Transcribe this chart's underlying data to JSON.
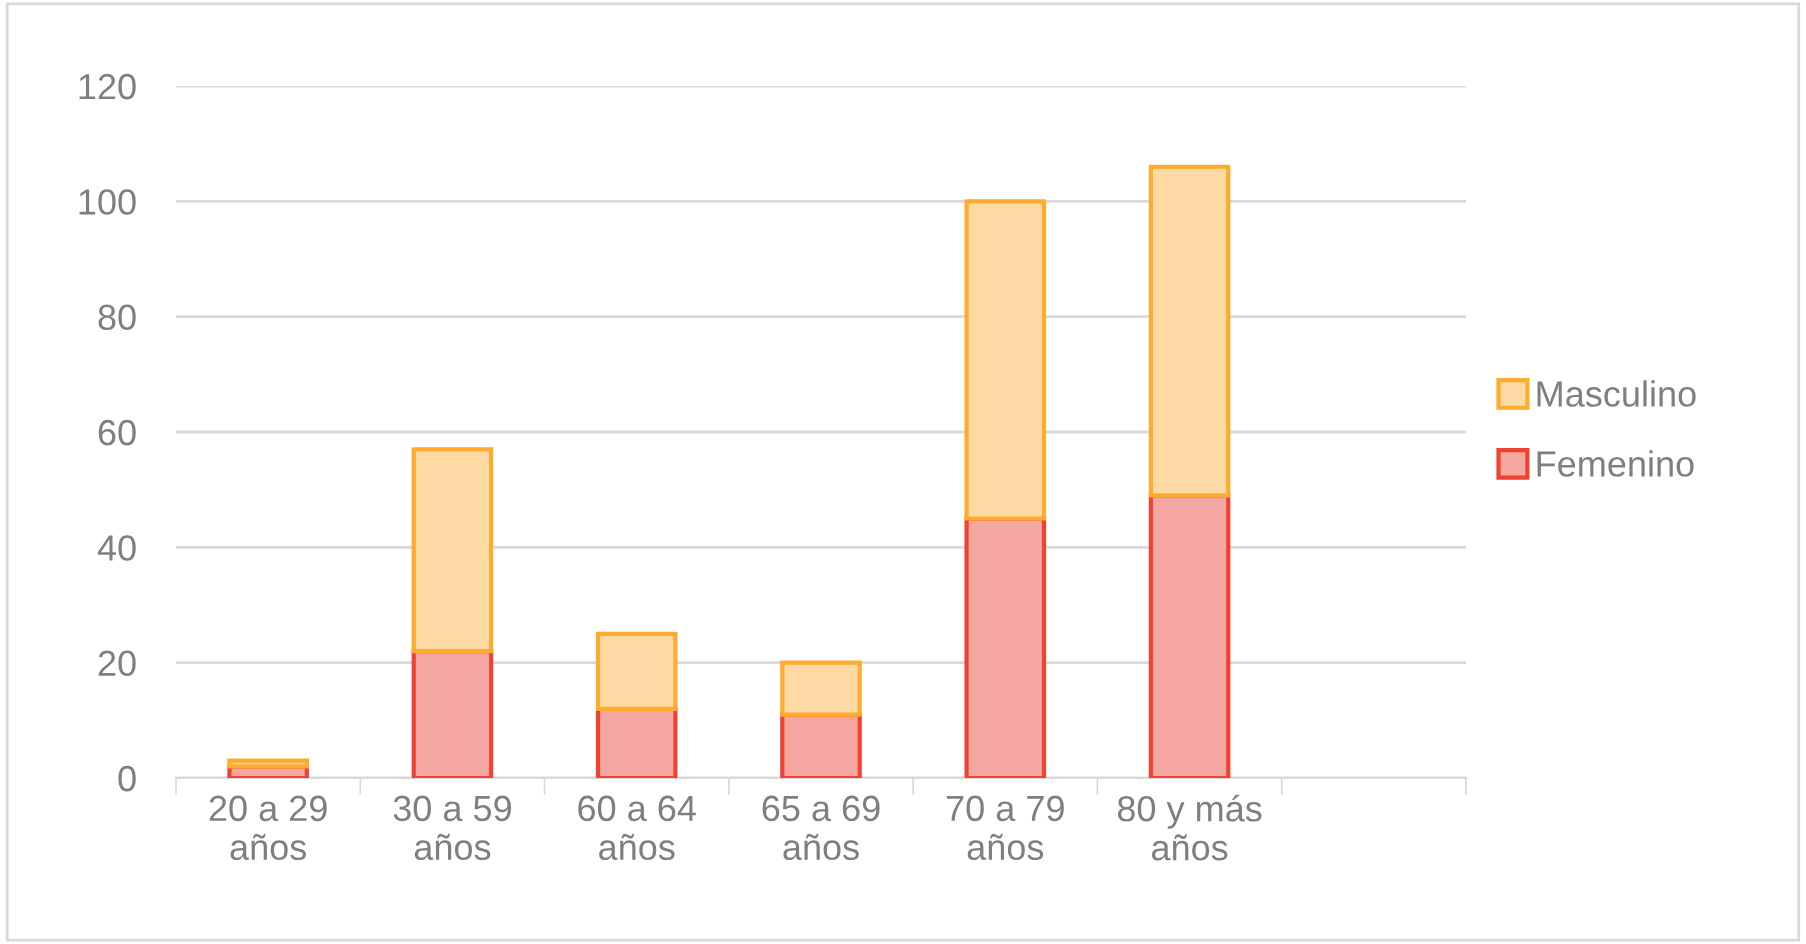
{
  "chart_data": {
    "type": "bar",
    "stacked": true,
    "categories": [
      "20 a 29\naños",
      "30 a 59\naños",
      "60 a 64\naños",
      "65 a 69\naños",
      "70 a 79\naños",
      "80 y más\naños",
      null
    ],
    "series": [
      {
        "name": "Femenino",
        "color": "#f4a7a1",
        "values": [
          2,
          22,
          12,
          11,
          45,
          49,
          null
        ]
      },
      {
        "name": "Masculino",
        "color": "#fdd9a3",
        "values": [
          1,
          35,
          13,
          9,
          55,
          57,
          null
        ]
      }
    ],
    "ylim": [
      0,
      120
    ],
    "yticks": [
      0,
      20,
      40,
      60,
      80,
      100,
      120
    ],
    "grid": "y",
    "legend": "right"
  }
}
